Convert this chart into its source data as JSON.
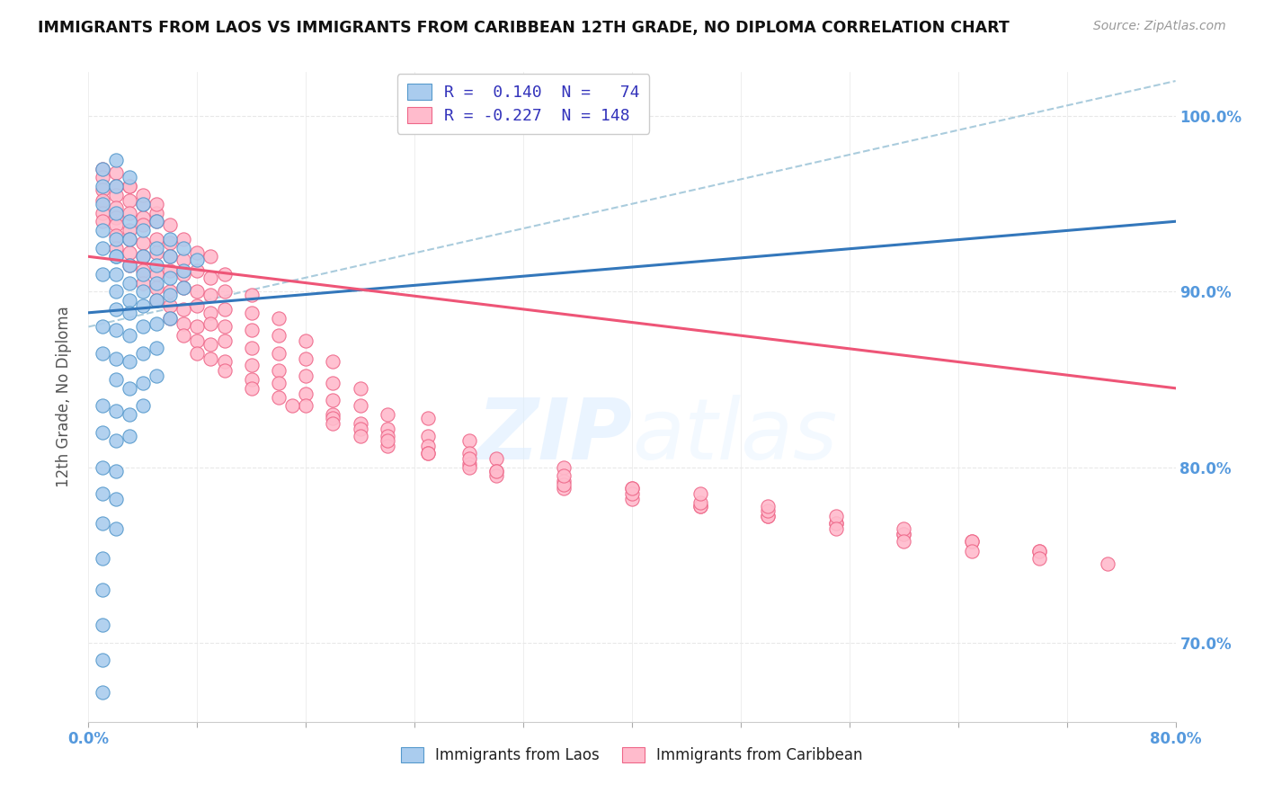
{
  "title": "IMMIGRANTS FROM LAOS VS IMMIGRANTS FROM CARIBBEAN 12TH GRADE, NO DIPLOMA CORRELATION CHART",
  "source": "Source: ZipAtlas.com",
  "ylabel_label": "12th Grade, No Diploma",
  "legend_label1": "Immigrants from Laos",
  "legend_label2": "Immigrants from Caribbean",
  "xmin": 0.0,
  "xmax": 0.8,
  "ymin": 0.655,
  "ymax": 1.025,
  "yticks": [
    0.7,
    0.8,
    0.9,
    1.0
  ],
  "ytick_labels": [
    "70.0%",
    "80.0%",
    "90.0%",
    "100.0%"
  ],
  "xtick_left_label": "0.0%",
  "xtick_right_label": "80.0%",
  "blue_scatter_color": "#aaccee",
  "blue_edge_color": "#5599cc",
  "pink_scatter_color": "#ffbbcc",
  "pink_edge_color": "#ee6688",
  "blue_line_color": "#3377bb",
  "pink_line_color": "#ee5577",
  "ref_line_color": "#aaccdd",
  "grid_color": "#e8e8e8",
  "axis_label_color": "#5599dd",
  "title_color": "#111111",
  "legend_text_color": "#3333bb",
  "watermark_color": "#ccddeeff",
  "bg_color": "#ffffff",
  "laos_trend_x0": 0.0,
  "laos_trend_y0": 0.888,
  "laos_trend_x1": 0.8,
  "laos_trend_y1": 0.94,
  "carib_trend_x0": 0.0,
  "carib_trend_y0": 0.92,
  "carib_trend_x1": 0.8,
  "carib_trend_y1": 0.845,
  "ref_line_x0": 0.0,
  "ref_line_y0": 0.88,
  "ref_line_x1": 0.8,
  "ref_line_y1": 1.02,
  "laos_points": [
    [
      0.01,
      0.97
    ],
    [
      0.01,
      0.96
    ],
    [
      0.02,
      0.975
    ],
    [
      0.02,
      0.96
    ],
    [
      0.01,
      0.95
    ],
    [
      0.02,
      0.945
    ],
    [
      0.03,
      0.965
    ],
    [
      0.01,
      0.935
    ],
    [
      0.02,
      0.93
    ],
    [
      0.03,
      0.94
    ],
    [
      0.04,
      0.95
    ],
    [
      0.01,
      0.925
    ],
    [
      0.02,
      0.92
    ],
    [
      0.03,
      0.93
    ],
    [
      0.04,
      0.935
    ],
    [
      0.05,
      0.94
    ],
    [
      0.01,
      0.91
    ],
    [
      0.02,
      0.91
    ],
    [
      0.03,
      0.915
    ],
    [
      0.04,
      0.92
    ],
    [
      0.05,
      0.925
    ],
    [
      0.06,
      0.93
    ],
    [
      0.02,
      0.9
    ],
    [
      0.03,
      0.905
    ],
    [
      0.04,
      0.91
    ],
    [
      0.05,
      0.915
    ],
    [
      0.06,
      0.92
    ],
    [
      0.07,
      0.925
    ],
    [
      0.03,
      0.895
    ],
    [
      0.04,
      0.9
    ],
    [
      0.05,
      0.905
    ],
    [
      0.06,
      0.908
    ],
    [
      0.07,
      0.912
    ],
    [
      0.08,
      0.918
    ],
    [
      0.02,
      0.89
    ],
    [
      0.03,
      0.888
    ],
    [
      0.04,
      0.892
    ],
    [
      0.05,
      0.895
    ],
    [
      0.06,
      0.898
    ],
    [
      0.07,
      0.902
    ],
    [
      0.01,
      0.88
    ],
    [
      0.02,
      0.878
    ],
    [
      0.03,
      0.875
    ],
    [
      0.04,
      0.88
    ],
    [
      0.05,
      0.882
    ],
    [
      0.06,
      0.885
    ],
    [
      0.01,
      0.865
    ],
    [
      0.02,
      0.862
    ],
    [
      0.03,
      0.86
    ],
    [
      0.04,
      0.865
    ],
    [
      0.05,
      0.868
    ],
    [
      0.02,
      0.85
    ],
    [
      0.03,
      0.845
    ],
    [
      0.04,
      0.848
    ],
    [
      0.05,
      0.852
    ],
    [
      0.01,
      0.835
    ],
    [
      0.02,
      0.832
    ],
    [
      0.03,
      0.83
    ],
    [
      0.04,
      0.835
    ],
    [
      0.01,
      0.82
    ],
    [
      0.02,
      0.815
    ],
    [
      0.03,
      0.818
    ],
    [
      0.01,
      0.8
    ],
    [
      0.02,
      0.798
    ],
    [
      0.01,
      0.785
    ],
    [
      0.02,
      0.782
    ],
    [
      0.01,
      0.768
    ],
    [
      0.02,
      0.765
    ],
    [
      0.01,
      0.748
    ],
    [
      0.01,
      0.73
    ],
    [
      0.01,
      0.71
    ],
    [
      0.01,
      0.69
    ],
    [
      0.01,
      0.672
    ],
    [
      0.02,
      0.92
    ]
  ],
  "carib_points": [
    [
      0.01,
      0.97
    ],
    [
      0.01,
      0.965
    ],
    [
      0.02,
      0.968
    ],
    [
      0.02,
      0.96
    ],
    [
      0.01,
      0.958
    ],
    [
      0.02,
      0.955
    ],
    [
      0.03,
      0.96
    ],
    [
      0.01,
      0.952
    ],
    [
      0.02,
      0.948
    ],
    [
      0.03,
      0.952
    ],
    [
      0.04,
      0.95
    ],
    [
      0.01,
      0.945
    ],
    [
      0.02,
      0.942
    ],
    [
      0.03,
      0.945
    ],
    [
      0.04,
      0.942
    ],
    [
      0.05,
      0.945
    ],
    [
      0.01,
      0.94
    ],
    [
      0.02,
      0.938
    ],
    [
      0.03,
      0.935
    ],
    [
      0.04,
      0.938
    ],
    [
      0.05,
      0.94
    ],
    [
      0.06,
      0.938
    ],
    [
      0.02,
      0.932
    ],
    [
      0.03,
      0.93
    ],
    [
      0.04,
      0.928
    ],
    [
      0.05,
      0.93
    ],
    [
      0.06,
      0.928
    ],
    [
      0.07,
      0.93
    ],
    [
      0.02,
      0.925
    ],
    [
      0.03,
      0.922
    ],
    [
      0.04,
      0.92
    ],
    [
      0.05,
      0.922
    ],
    [
      0.06,
      0.92
    ],
    [
      0.07,
      0.918
    ],
    [
      0.08,
      0.922
    ],
    [
      0.09,
      0.92
    ],
    [
      0.03,
      0.915
    ],
    [
      0.04,
      0.912
    ],
    [
      0.05,
      0.91
    ],
    [
      0.06,
      0.912
    ],
    [
      0.07,
      0.91
    ],
    [
      0.08,
      0.912
    ],
    [
      0.09,
      0.908
    ],
    [
      0.1,
      0.91
    ],
    [
      0.04,
      0.905
    ],
    [
      0.05,
      0.902
    ],
    [
      0.06,
      0.9
    ],
    [
      0.07,
      0.902
    ],
    [
      0.08,
      0.9
    ],
    [
      0.09,
      0.898
    ],
    [
      0.1,
      0.9
    ],
    [
      0.12,
      0.898
    ],
    [
      0.05,
      0.895
    ],
    [
      0.06,
      0.892
    ],
    [
      0.07,
      0.89
    ],
    [
      0.08,
      0.892
    ],
    [
      0.09,
      0.888
    ],
    [
      0.1,
      0.89
    ],
    [
      0.12,
      0.888
    ],
    [
      0.14,
      0.885
    ],
    [
      0.06,
      0.885
    ],
    [
      0.07,
      0.882
    ],
    [
      0.08,
      0.88
    ],
    [
      0.09,
      0.882
    ],
    [
      0.1,
      0.88
    ],
    [
      0.12,
      0.878
    ],
    [
      0.14,
      0.875
    ],
    [
      0.16,
      0.872
    ],
    [
      0.07,
      0.875
    ],
    [
      0.08,
      0.872
    ],
    [
      0.09,
      0.87
    ],
    [
      0.1,
      0.872
    ],
    [
      0.12,
      0.868
    ],
    [
      0.14,
      0.865
    ],
    [
      0.16,
      0.862
    ],
    [
      0.18,
      0.86
    ],
    [
      0.08,
      0.865
    ],
    [
      0.09,
      0.862
    ],
    [
      0.1,
      0.86
    ],
    [
      0.12,
      0.858
    ],
    [
      0.14,
      0.855
    ],
    [
      0.16,
      0.852
    ],
    [
      0.18,
      0.848
    ],
    [
      0.2,
      0.845
    ],
    [
      0.1,
      0.855
    ],
    [
      0.12,
      0.85
    ],
    [
      0.14,
      0.848
    ],
    [
      0.16,
      0.842
    ],
    [
      0.18,
      0.838
    ],
    [
      0.2,
      0.835
    ],
    [
      0.22,
      0.83
    ],
    [
      0.25,
      0.828
    ],
    [
      0.12,
      0.845
    ],
    [
      0.14,
      0.84
    ],
    [
      0.16,
      0.835
    ],
    [
      0.18,
      0.83
    ],
    [
      0.2,
      0.825
    ],
    [
      0.22,
      0.822
    ],
    [
      0.25,
      0.818
    ],
    [
      0.28,
      0.815
    ],
    [
      0.15,
      0.835
    ],
    [
      0.18,
      0.828
    ],
    [
      0.2,
      0.822
    ],
    [
      0.22,
      0.818
    ],
    [
      0.25,
      0.812
    ],
    [
      0.28,
      0.808
    ],
    [
      0.3,
      0.805
    ],
    [
      0.35,
      0.8
    ],
    [
      0.18,
      0.825
    ],
    [
      0.2,
      0.818
    ],
    [
      0.22,
      0.812
    ],
    [
      0.25,
      0.808
    ],
    [
      0.28,
      0.802
    ],
    [
      0.3,
      0.798
    ],
    [
      0.35,
      0.792
    ],
    [
      0.4,
      0.788
    ],
    [
      0.22,
      0.815
    ],
    [
      0.25,
      0.808
    ],
    [
      0.28,
      0.8
    ],
    [
      0.3,
      0.795
    ],
    [
      0.35,
      0.788
    ],
    [
      0.4,
      0.782
    ],
    [
      0.45,
      0.778
    ],
    [
      0.5,
      0.772
    ],
    [
      0.28,
      0.805
    ],
    [
      0.3,
      0.798
    ],
    [
      0.35,
      0.79
    ],
    [
      0.4,
      0.785
    ],
    [
      0.45,
      0.778
    ],
    [
      0.5,
      0.772
    ],
    [
      0.55,
      0.768
    ],
    [
      0.6,
      0.762
    ],
    [
      0.35,
      0.795
    ],
    [
      0.4,
      0.788
    ],
    [
      0.45,
      0.78
    ],
    [
      0.5,
      0.775
    ],
    [
      0.55,
      0.768
    ],
    [
      0.6,
      0.762
    ],
    [
      0.65,
      0.758
    ],
    [
      0.7,
      0.752
    ],
    [
      0.45,
      0.785
    ],
    [
      0.5,
      0.778
    ],
    [
      0.55,
      0.772
    ],
    [
      0.6,
      0.765
    ],
    [
      0.65,
      0.758
    ],
    [
      0.7,
      0.752
    ],
    [
      0.03,
      0.96
    ],
    [
      0.04,
      0.955
    ],
    [
      0.05,
      0.95
    ],
    [
      0.55,
      0.765
    ],
    [
      0.6,
      0.758
    ],
    [
      0.65,
      0.752
    ],
    [
      0.7,
      0.748
    ],
    [
      0.75,
      0.745
    ]
  ]
}
